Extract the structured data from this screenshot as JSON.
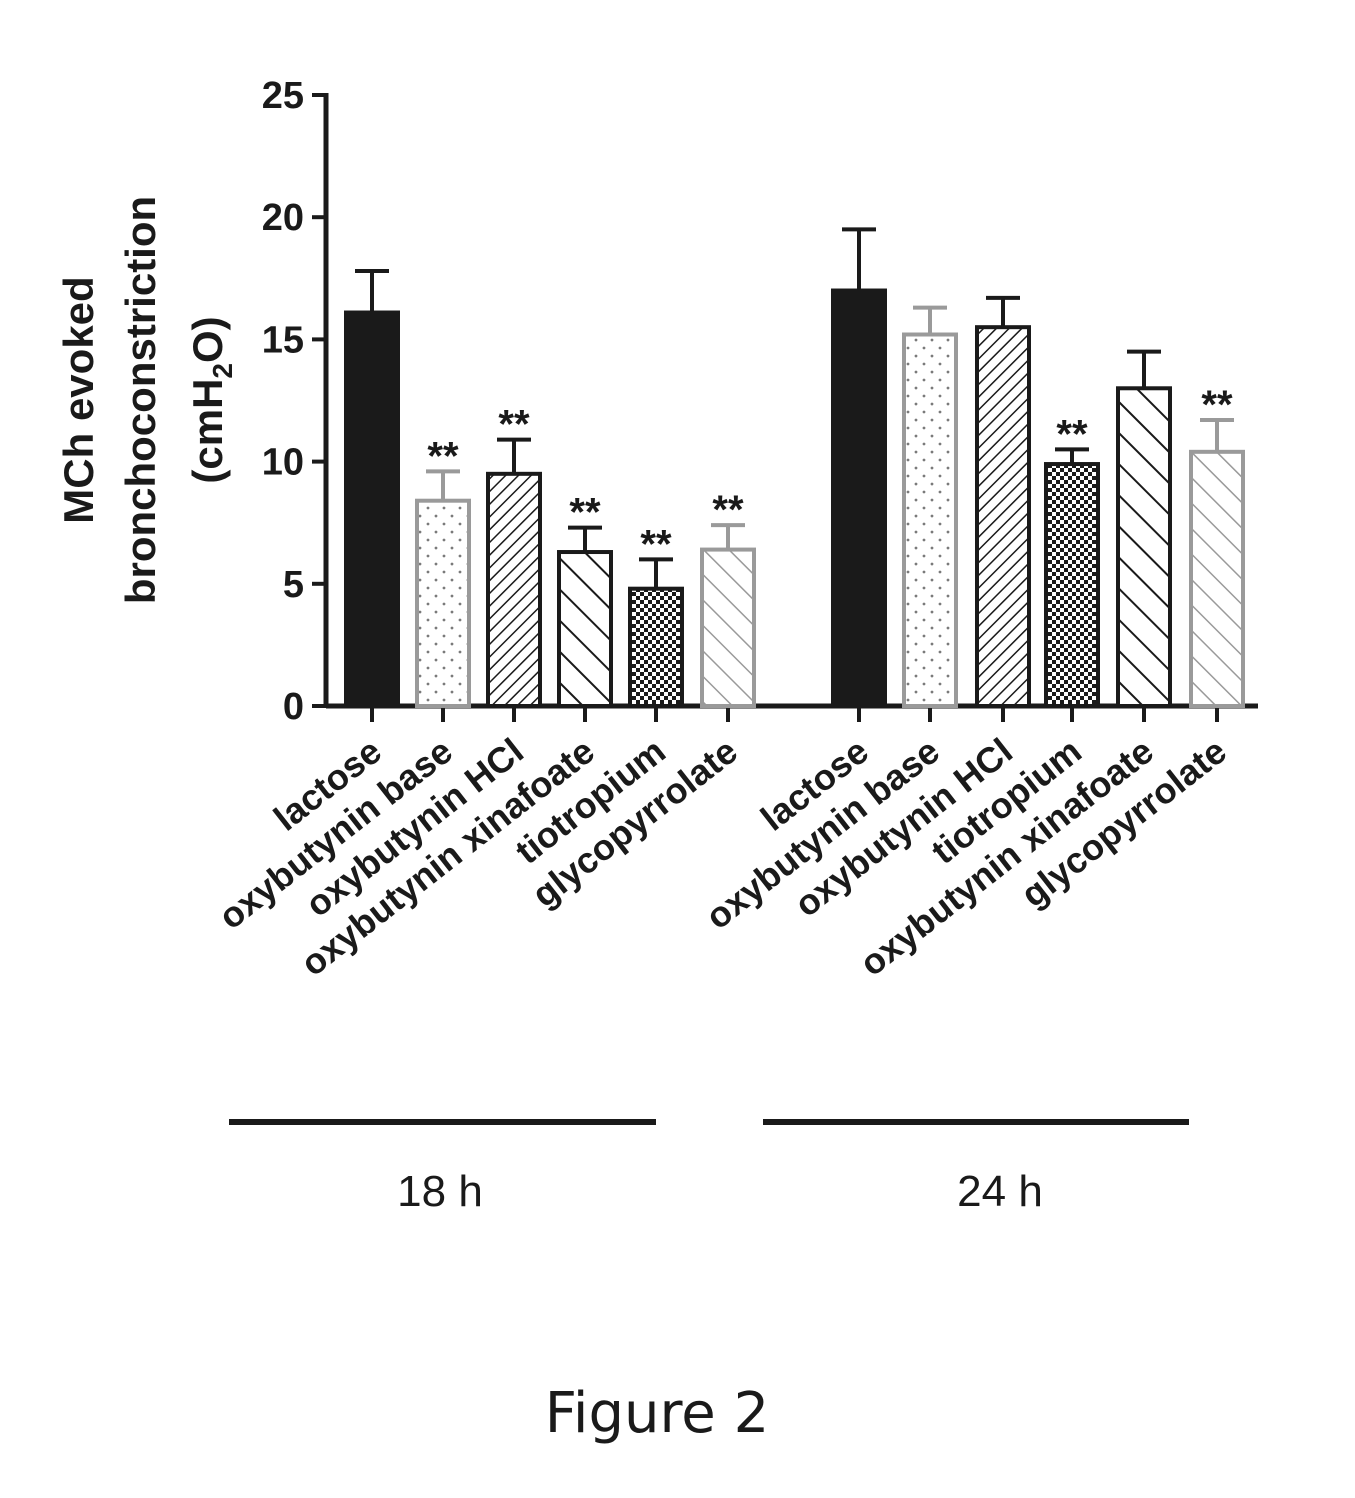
{
  "chart_data": {
    "type": "bar",
    "ylabel_line1": "MCh evoked",
    "ylabel_line2": "bronchoconstriction",
    "ylabel_line3_pre": "(cmH",
    "ylabel_line3_sub": "2",
    "ylabel_line3_post": "O)",
    "ylim": [
      0,
      25
    ],
    "yticks": [
      "0",
      "5",
      "10",
      "15",
      "20",
      "25"
    ],
    "significance_marker": "**",
    "groups": [
      {
        "name": "18 h",
        "bars": [
          {
            "label": "lactose",
            "value": 16.1,
            "error": 1.7,
            "pattern": "solid",
            "sig": false
          },
          {
            "label": "oxybutynin base",
            "value": 8.4,
            "error": 1.2,
            "pattern": "dots",
            "sig": true
          },
          {
            "label": "oxybutynin HCl",
            "value": 9.5,
            "error": 1.4,
            "pattern": "dense-diag",
            "sig": true
          },
          {
            "label": "oxybutynin xinafoate",
            "value": 6.3,
            "error": 1.0,
            "pattern": "wide-diag",
            "sig": true
          },
          {
            "label": "tiotropium",
            "value": 4.8,
            "error": 1.2,
            "pattern": "checker",
            "sig": true
          },
          {
            "label": "glycopyrrolate",
            "value": 6.4,
            "error": 1.0,
            "pattern": "light-diag",
            "sig": true
          }
        ]
      },
      {
        "name": "24 h",
        "bars": [
          {
            "label": "lactose",
            "value": 17.0,
            "error": 2.5,
            "pattern": "solid",
            "sig": false
          },
          {
            "label": "oxybutynin base",
            "value": 15.2,
            "error": 1.1,
            "pattern": "dots",
            "sig": false
          },
          {
            "label": "oxybutynin HCl",
            "value": 15.5,
            "error": 1.2,
            "pattern": "dense-diag",
            "sig": false
          },
          {
            "label": "tiotropium",
            "value": 9.9,
            "error": 0.6,
            "pattern": "checker",
            "sig": true
          },
          {
            "label": "oxybutynin xinafoate",
            "value": 13.0,
            "error": 1.5,
            "pattern": "wide-diag",
            "sig": false
          },
          {
            "label": "glycopyrrolate",
            "value": 10.4,
            "error": 1.3,
            "pattern": "light-diag",
            "sig": true
          }
        ]
      }
    ]
  },
  "caption": "Figure 2",
  "colors": {
    "ink": "#1a1a1a",
    "light": "#9a9a9a",
    "bg": "#ffffff"
  }
}
